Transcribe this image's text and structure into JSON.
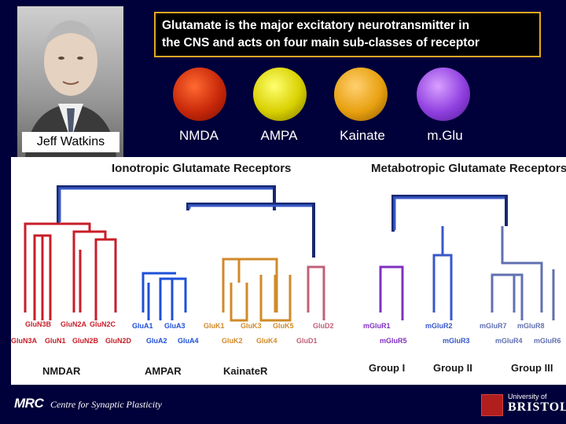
{
  "photo": {
    "caption": "Jeff Watkins"
  },
  "headline": {
    "line1": "Glutamate is the major excitatory neurotransmitter in",
    "line2": "the CNS and acts on four main sub-classes of receptor"
  },
  "receptors": [
    {
      "label": "NMDA",
      "color": "#c8280a"
    },
    {
      "label": "AMPA",
      "color": "#d8d000"
    },
    {
      "label": "Kainate",
      "color": "#e8a010"
    },
    {
      "label": "m.Glu",
      "color": "#9040e0"
    }
  ],
  "tree": {
    "titles": {
      "iono": "Ionotropic Glutamate Receptors",
      "metab": "Metabotropic Glutamate Receptors"
    },
    "subunits": {
      "nmda_top": [
        "GluN3B",
        "GluN2A",
        "GluN2C"
      ],
      "nmda_bot": [
        "GluN3A",
        "GluN1",
        "GluN2B",
        "GluN2D"
      ],
      "ampa_top": [
        "GluA1",
        "GluA3"
      ],
      "ampa_bot": [
        "GluA2",
        "GluA4"
      ],
      "kain_top": [
        "GluK1",
        "GluK3",
        "GluK5",
        "GluD2"
      ],
      "kain_bot": [
        "GluK2",
        "GluK4",
        "GluD1"
      ],
      "g1_top": [
        "mGluR1"
      ],
      "g1_bot": [
        "mGluR5"
      ],
      "g2_top": [
        "mGluR2"
      ],
      "g2_bot": [
        "mGluR3"
      ],
      "g3_top": [
        "mGluR7",
        "mGluR8"
      ],
      "g3_bot": [
        "mGluR4",
        "mGluR6"
      ]
    },
    "groups": [
      "NMDAR",
      "AMPAR",
      "KainateR",
      "Group I",
      "Group II",
      "Group III"
    ],
    "colors": {
      "nmda": "#c81e28",
      "ampa": "#1e50d8",
      "kain": "#d08a28",
      "delta": "#c0607a",
      "trunk": "#182870",
      "g1": "#8030c0",
      "g2": "#3858c8",
      "g3": "#6070b0"
    }
  },
  "footer": {
    "org": "MRC",
    "centre": "Centre for Synaptic Plasticity",
    "uni_line1": "University of",
    "uni_line2": "BRISTOL"
  }
}
